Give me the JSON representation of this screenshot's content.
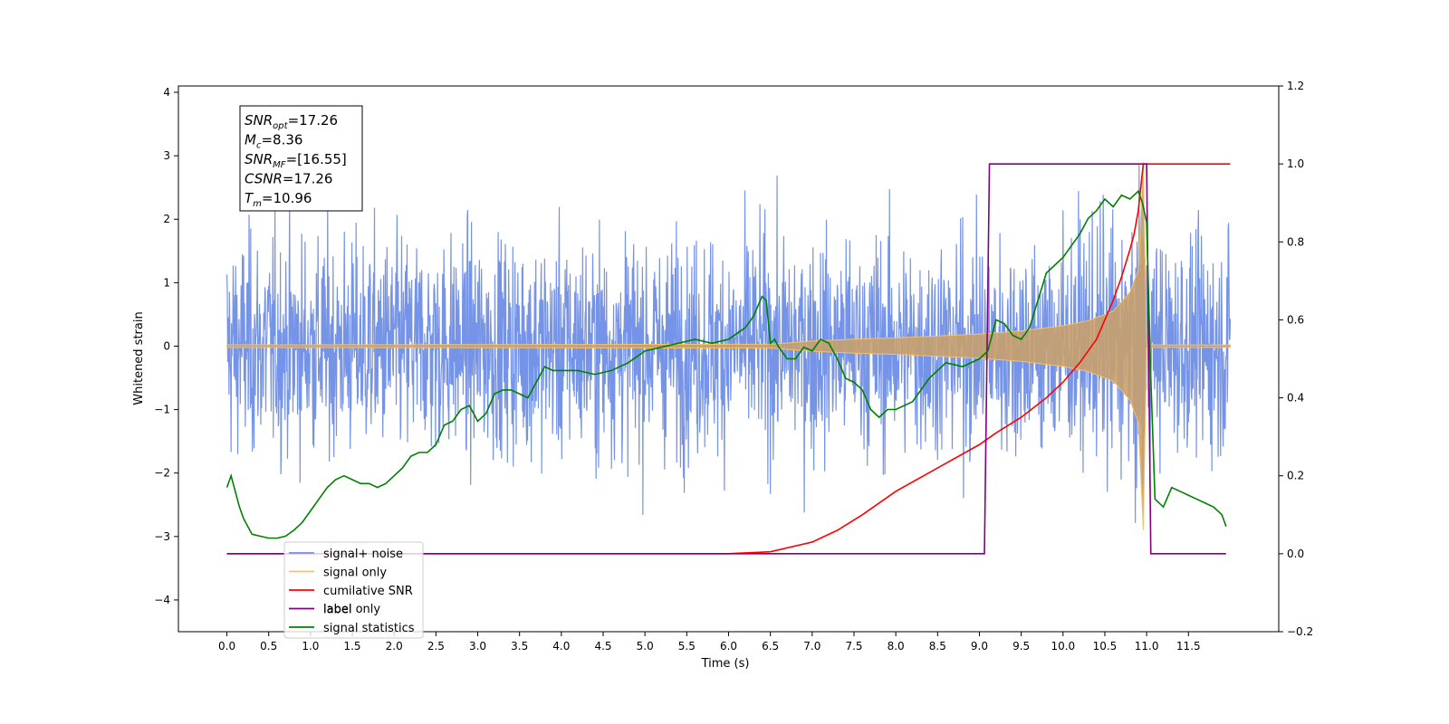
{
  "chart_data": {
    "type": "line",
    "xlabel": "Time (s)",
    "ylabel": "Whitened strain",
    "xlim": [
      -0.58,
      12.58
    ],
    "ylim": [
      -4.5,
      4.1
    ],
    "y2lim": [
      -0.2,
      1.2
    ],
    "x_ticks": [
      "0.0",
      "0.5",
      "1.0",
      "1.5",
      "2.0",
      "2.5",
      "3.0",
      "3.5",
      "4.0",
      "4.5",
      "5.0",
      "5.5",
      "6.0",
      "6.5",
      "7.0",
      "7.5",
      "8.0",
      "8.5",
      "9.0",
      "9.5",
      "10.0",
      "10.5",
      "11.0",
      "11.5"
    ],
    "y_ticks": [
      "4",
      "3",
      "2",
      "1",
      "0",
      "−1",
      "−2",
      "−3",
      "−4"
    ],
    "y2_ticks": [
      "1.2",
      "1.0",
      "0.8",
      "0.6",
      "0.4",
      "0.2",
      "0.0",
      "−0.2"
    ],
    "annotation_lines": [
      {
        "base": "SNR",
        "sub": "opt",
        "value": "=17.26"
      },
      {
        "base": "M",
        "sub": "c",
        "value": "=8.36"
      },
      {
        "base": "SNR",
        "sub": "MF",
        "value": "=[16.55]"
      },
      {
        "base": "CSNR",
        "sub": "",
        "value": "=17.26"
      },
      {
        "base": "T",
        "sub": "m",
        "value": "=10.96"
      }
    ],
    "legend": {
      "location": "lower-left",
      "entries": [
        {
          "label": "signal+ noise",
          "color": "#6f8ee6"
        },
        {
          "label": "signal only",
          "color": "#f5c26b"
        },
        {
          "label": "cumilative SNR",
          "color": "#ff0000"
        },
        {
          "label": "label",
          "color": "#800080"
        },
        {
          "label": "signal statistics",
          "color": "#008000"
        }
      ],
      "ghost_label": "label only"
    },
    "series": [
      {
        "name": "signal+ noise",
        "axis": "left",
        "color": "#6f8ee6",
        "description": "white noise, std ~0.85, t 0 to 12",
        "x_range": [
          0,
          12
        ],
        "noise_std": 0.85
      },
      {
        "name": "signal only",
        "axis": "left",
        "color": "#f5c26b",
        "envelope_x": [
          0,
          6.5,
          7.0,
          7.5,
          8.0,
          8.5,
          9.0,
          9.5,
          10.0,
          10.3,
          10.6,
          10.8,
          10.9,
          10.96,
          11.0,
          12.0
        ],
        "envelope_y": [
          0.02,
          0.03,
          0.08,
          0.11,
          0.13,
          0.16,
          0.19,
          0.24,
          0.32,
          0.4,
          0.55,
          0.85,
          1.2,
          2.9,
          0.02,
          0.02
        ]
      },
      {
        "name": "cumilative SNR",
        "axis": "right",
        "color": "#ff0000",
        "x": [
          0,
          6.0,
          6.5,
          7.0,
          7.3,
          7.6,
          8.0,
          8.5,
          9.0,
          9.2,
          9.5,
          9.8,
          10.0,
          10.2,
          10.4,
          10.6,
          10.7,
          10.8,
          10.85,
          10.9,
          10.96,
          11.0,
          12.0
        ],
        "y": [
          0,
          0,
          0.005,
          0.03,
          0.06,
          0.1,
          0.16,
          0.22,
          0.28,
          0.31,
          0.35,
          0.4,
          0.44,
          0.49,
          0.55,
          0.65,
          0.71,
          0.78,
          0.82,
          0.88,
          1.0,
          1.0,
          1.0
        ]
      },
      {
        "name": "label",
        "axis": "right",
        "color": "#800080",
        "x": [
          0,
          9.06,
          9.12,
          11.0,
          11.05,
          11.95
        ],
        "y": [
          0,
          0,
          1,
          1,
          0,
          0
        ]
      },
      {
        "name": "signal statistics",
        "axis": "right",
        "color": "#008000",
        "x": [
          0.0,
          0.05,
          0.1,
          0.15,
          0.2,
          0.3,
          0.4,
          0.5,
          0.6,
          0.7,
          0.8,
          0.9,
          1.0,
          1.1,
          1.2,
          1.3,
          1.4,
          1.5,
          1.6,
          1.7,
          1.8,
          1.9,
          2.0,
          2.1,
          2.2,
          2.3,
          2.4,
          2.5,
          2.6,
          2.7,
          2.8,
          2.9,
          3.0,
          3.1,
          3.2,
          3.3,
          3.4,
          3.5,
          3.6,
          3.7,
          3.8,
          3.9,
          4.0,
          4.2,
          4.4,
          4.6,
          4.8,
          5.0,
          5.2,
          5.4,
          5.6,
          5.8,
          6.0,
          6.2,
          6.3,
          6.4,
          6.45,
          6.5,
          6.55,
          6.6,
          6.7,
          6.8,
          6.9,
          7.0,
          7.1,
          7.2,
          7.3,
          7.4,
          7.5,
          7.6,
          7.7,
          7.8,
          7.9,
          8.0,
          8.2,
          8.4,
          8.6,
          8.8,
          9.0,
          9.1,
          9.2,
          9.3,
          9.4,
          9.5,
          9.6,
          9.7,
          9.8,
          9.9,
          10.0,
          10.1,
          10.2,
          10.3,
          10.4,
          10.5,
          10.6,
          10.7,
          10.8,
          10.9,
          10.95,
          11.0,
          11.05,
          11.1,
          11.2,
          11.3,
          11.4,
          11.5,
          11.6,
          11.7,
          11.8,
          11.9,
          11.95
        ],
        "y": [
          0.17,
          0.2,
          0.16,
          0.12,
          0.09,
          0.05,
          0.045,
          0.04,
          0.04,
          0.045,
          0.06,
          0.08,
          0.11,
          0.14,
          0.17,
          0.19,
          0.2,
          0.19,
          0.18,
          0.18,
          0.17,
          0.18,
          0.2,
          0.22,
          0.25,
          0.26,
          0.26,
          0.28,
          0.33,
          0.34,
          0.37,
          0.38,
          0.34,
          0.36,
          0.41,
          0.42,
          0.42,
          0.41,
          0.4,
          0.44,
          0.48,
          0.47,
          0.47,
          0.47,
          0.46,
          0.47,
          0.49,
          0.52,
          0.53,
          0.54,
          0.55,
          0.54,
          0.55,
          0.58,
          0.61,
          0.66,
          0.65,
          0.54,
          0.55,
          0.53,
          0.5,
          0.5,
          0.53,
          0.52,
          0.55,
          0.54,
          0.5,
          0.45,
          0.44,
          0.42,
          0.37,
          0.35,
          0.37,
          0.37,
          0.39,
          0.45,
          0.49,
          0.48,
          0.5,
          0.52,
          0.6,
          0.59,
          0.56,
          0.55,
          0.58,
          0.65,
          0.72,
          0.74,
          0.76,
          0.79,
          0.82,
          0.86,
          0.88,
          0.91,
          0.89,
          0.92,
          0.91,
          0.93,
          0.9,
          0.85,
          0.45,
          0.14,
          0.12,
          0.17,
          0.16,
          0.15,
          0.14,
          0.13,
          0.12,
          0.1,
          0.07
        ]
      }
    ]
  }
}
